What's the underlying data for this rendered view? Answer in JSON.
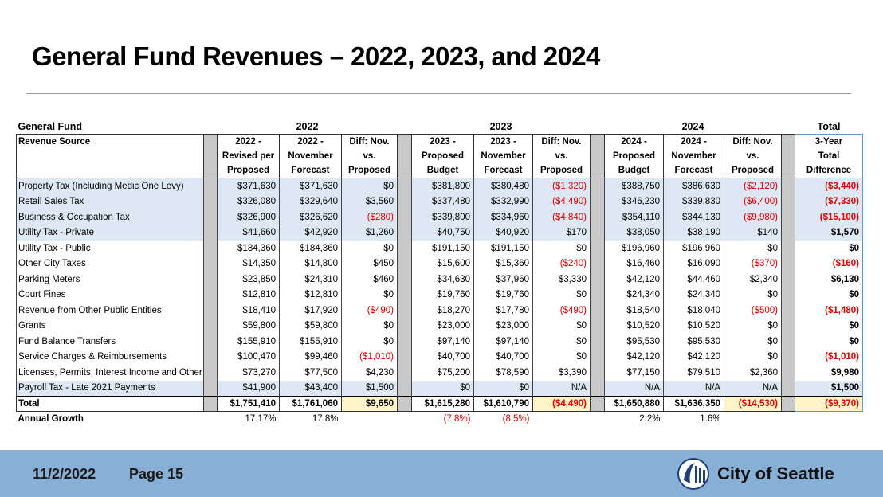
{
  "title": "General Fund Revenues – 2022, 2023, and 2024",
  "table": {
    "groups": [
      "General Fund",
      "2022",
      "2023",
      "2024",
      "Total"
    ],
    "columns": [
      "Revenue Source",
      "2022 -\nRevised per\nProposed",
      "2022 -\nNovember\nForecast",
      "Diff: Nov.\nvs.\nProposed",
      "2023 -\nProposed\nBudget",
      "2023 -\nNovember\nForecast",
      "Diff: Nov.\nvs.\nProposed",
      "2024 -\nProposed\nBudget",
      "2024 -\nNovember\nForecast",
      "Diff: Nov.\nvs.\nProposed",
      "3-Year\nTotal\nDifference"
    ],
    "rows": [
      [
        "Property Tax (Including Medic One Levy)",
        "$371,630",
        "$371,630",
        "$0",
        "$381,800",
        "$380,480",
        "($1,320)",
        "$388,750",
        "$386,630",
        "($2,120)",
        "($3,440)"
      ],
      [
        "Retail Sales Tax",
        "$326,080",
        "$329,640",
        "$3,560",
        "$337,480",
        "$332,990",
        "($4,490)",
        "$346,230",
        "$339,830",
        "($6,400)",
        "($7,330)"
      ],
      [
        "Business & Occupation Tax",
        "$326,900",
        "$326,620",
        "($280)",
        "$339,800",
        "$334,960",
        "($4,840)",
        "$354,110",
        "$344,130",
        "($9,980)",
        "($15,100)"
      ],
      [
        "Utility Tax - Private",
        "$41,660",
        "$42,920",
        "$1,260",
        "$40,750",
        "$40,920",
        "$170",
        "$38,050",
        "$38,190",
        "$140",
        "$1,570"
      ],
      [
        "Utility Tax - Public",
        "$184,360",
        "$184,360",
        "$0",
        "$191,150",
        "$191,150",
        "$0",
        "$196,960",
        "$196,960",
        "$0",
        "$0"
      ],
      [
        "Other City Taxes",
        "$14,350",
        "$14,800",
        "$450",
        "$15,600",
        "$15,360",
        "($240)",
        "$16,460",
        "$16,090",
        "($370)",
        "($160)"
      ],
      [
        "Parking Meters",
        "$23,850",
        "$24,310",
        "$460",
        "$34,630",
        "$37,960",
        "$3,330",
        "$42,120",
        "$44,460",
        "$2,340",
        "$6,130"
      ],
      [
        "Court Fines",
        "$12,810",
        "$12,810",
        "$0",
        "$19,760",
        "$19,760",
        "$0",
        "$24,340",
        "$24,340",
        "$0",
        "$0"
      ],
      [
        "Revenue from Other Public Entities",
        "$18,410",
        "$17,920",
        "($490)",
        "$18,270",
        "$17,780",
        "($490)",
        "$18,540",
        "$18,040",
        "($500)",
        "($1,480)"
      ],
      [
        "Grants",
        "$59,800",
        "$59,800",
        "$0",
        "$23,000",
        "$23,000",
        "$0",
        "$10,520",
        "$10,520",
        "$0",
        "$0"
      ],
      [
        "Fund Balance Transfers",
        "$155,910",
        "$155,910",
        "$0",
        "$97,140",
        "$97,140",
        "$0",
        "$95,530",
        "$95,530",
        "$0",
        "$0"
      ],
      [
        "Service Charges & Reimbursements",
        "$100,470",
        "$99,460",
        "($1,010)",
        "$40,700",
        "$40,700",
        "$0",
        "$42,120",
        "$42,120",
        "$0",
        "($1,010)"
      ],
      [
        "Licenses, Permits, Interest Income and Other",
        "$73,270",
        "$77,500",
        "$4,230",
        "$75,200",
        "$78,590",
        "$3,390",
        "$77,150",
        "$79,510",
        "$2,360",
        "$9,980"
      ],
      [
        "Payroll Tax - Late 2021 Payments",
        "$41,900",
        "$43,400",
        "$1,500",
        "$0",
        "$0",
        "N/A",
        "N/A",
        "N/A",
        "N/A",
        "$1,500"
      ]
    ],
    "total": [
      "Total",
      "$1,751,410",
      "$1,761,060",
      "$9,650",
      "$1,615,280",
      "$1,610,790",
      "($4,490)",
      "$1,650,880",
      "$1,636,350",
      "($14,530)",
      "($9,370)"
    ],
    "annual_growth": {
      "label": "Annual Growth",
      "values": [
        "17.17%",
        "17.8%",
        "(7.8%)",
        "(8.5%)",
        "2.2%",
        "1.6%"
      ]
    }
  },
  "footer": {
    "date": "11/2/2022",
    "page": "Page 15",
    "logo": "City of Seattle"
  }
}
